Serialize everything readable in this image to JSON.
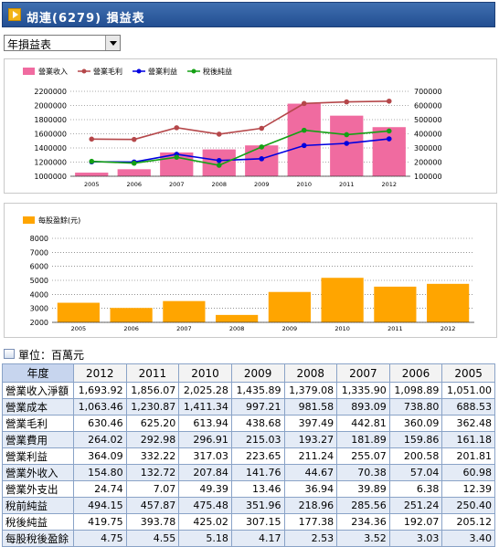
{
  "header": {
    "title": "胡連(6279) 損益表"
  },
  "report_select": {
    "value": "年損益表"
  },
  "chart_data": [
    {
      "type": "bar+line",
      "legend": [
        "營業收入",
        "營業毛利",
        "營業利益",
        "稅後純益"
      ],
      "legend_placement": "top-left",
      "categories": [
        "2005",
        "2006",
        "2007",
        "2008",
        "2009",
        "2010",
        "2011",
        "2012"
      ],
      "left_axis": {
        "ylim": [
          1000000,
          2200000
        ],
        "ticks": [
          "2200000",
          "2000000",
          "1800000",
          "1600000",
          "1400000",
          "1200000",
          "1000000"
        ]
      },
      "right_axis": {
        "ylim": [
          100000,
          700000
        ],
        "ticks": [
          "700000",
          "600000",
          "500000",
          "400000",
          "300000",
          "200000",
          "100000"
        ]
      },
      "series": [
        {
          "name": "營業收入",
          "kind": "bar",
          "axis": "left",
          "color": "#f06ba0",
          "values": [
            1051000,
            1098890,
            1335900,
            1379080,
            1435890,
            2025280,
            1856070,
            1693920
          ]
        },
        {
          "name": "營業毛利",
          "kind": "line",
          "axis": "right",
          "color": "#b5474a",
          "values": [
            362480,
            360090,
            442810,
            397490,
            438680,
            613940,
            625200,
            630460
          ]
        },
        {
          "name": "營業利益",
          "kind": "line",
          "axis": "right",
          "color": "#0000e0",
          "values": [
            201810,
            200580,
            255070,
            211240,
            223650,
            317030,
            332220,
            364090
          ]
        },
        {
          "name": "稅後純益",
          "kind": "line",
          "axis": "right",
          "color": "#14a014",
          "values": [
            205120,
            192070,
            234360,
            177380,
            307150,
            425020,
            393780,
            419750
          ]
        }
      ],
      "grid": true
    },
    {
      "type": "bar",
      "legend": [
        "每股盈餘(元)"
      ],
      "legend_placement": "top-left",
      "categories": [
        "2005",
        "2006",
        "2007",
        "2008",
        "2009",
        "2010",
        "2011",
        "2012"
      ],
      "ylim": [
        2000,
        8000
      ],
      "ticks": [
        "8000",
        "7000",
        "6000",
        "5000",
        "4000",
        "3000",
        "2000"
      ],
      "series": [
        {
          "name": "每股盈餘(元)",
          "color": "#ffa500",
          "values": [
            3400,
            3030,
            3520,
            2530,
            4170,
            5180,
            4550,
            4750
          ]
        }
      ],
      "grid": true
    }
  ],
  "unit_label": "單位：百萬元",
  "table": {
    "corner": "年度",
    "years": [
      "2012",
      "2011",
      "2010",
      "2009",
      "2008",
      "2007",
      "2006",
      "2005"
    ],
    "rows": [
      {
        "label": "營業收入淨額",
        "values": [
          "1,693.92",
          "1,856.07",
          "2,025.28",
          "1,435.89",
          "1,379.08",
          "1,335.90",
          "1,098.89",
          "1,051.00"
        ]
      },
      {
        "label": "營業成本",
        "values": [
          "1,063.46",
          "1,230.87",
          "1,411.34",
          "997.21",
          "981.58",
          "893.09",
          "738.80",
          "688.53"
        ]
      },
      {
        "label": "營業毛利",
        "values": [
          "630.46",
          "625.20",
          "613.94",
          "438.68",
          "397.49",
          "442.81",
          "360.09",
          "362.48"
        ]
      },
      {
        "label": "營業費用",
        "values": [
          "264.02",
          "292.98",
          "296.91",
          "215.03",
          "193.27",
          "181.89",
          "159.86",
          "161.18"
        ]
      },
      {
        "label": "營業利益",
        "values": [
          "364.09",
          "332.22",
          "317.03",
          "223.65",
          "211.24",
          "255.07",
          "200.58",
          "201.81"
        ]
      },
      {
        "label": "營業外收入",
        "values": [
          "154.80",
          "132.72",
          "207.84",
          "141.76",
          "44.67",
          "70.38",
          "57.04",
          "60.98"
        ]
      },
      {
        "label": "營業外支出",
        "values": [
          "24.74",
          "7.07",
          "49.39",
          "13.46",
          "36.94",
          "39.89",
          "6.38",
          "12.39"
        ]
      },
      {
        "label": "稅前純益",
        "values": [
          "494.15",
          "457.87",
          "475.48",
          "351.96",
          "218.96",
          "285.56",
          "251.24",
          "250.40"
        ]
      },
      {
        "label": "稅後純益",
        "values": [
          "419.75",
          "393.78",
          "425.02",
          "307.15",
          "177.38",
          "234.36",
          "192.07",
          "205.12"
        ]
      },
      {
        "label": "每股稅後盈餘",
        "values": [
          "4.75",
          "4.55",
          "5.18",
          "4.17",
          "2.53",
          "3.52",
          "3.03",
          "3.40"
        ]
      }
    ]
  }
}
